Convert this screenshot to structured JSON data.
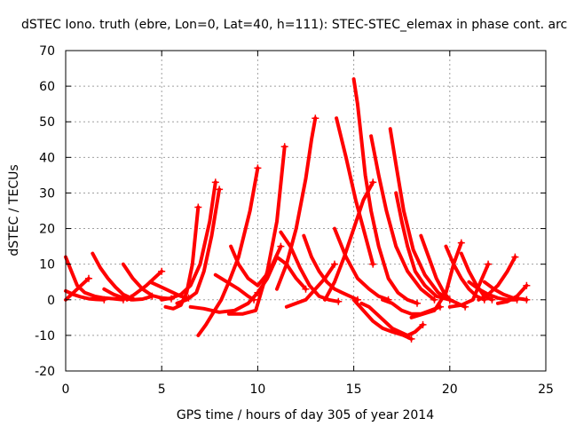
{
  "chart_data": {
    "type": "scatter",
    "title": "dSTEC Iono. truth (ebre, Lon=0, Lat=40, h=111): STEC-STEC_elemax in phase cont. arc",
    "xlabel": "GPS time / hours of day 305 of year 2014",
    "ylabel": "dSTEC  / TECUs",
    "xlim": [
      0,
      25
    ],
    "ylim": [
      -20,
      70
    ],
    "x_ticks": [
      "0",
      "5",
      "10",
      "15",
      "20",
      "25"
    ],
    "y_ticks": [
      "-20",
      "-10",
      "0",
      "10",
      "20",
      "30",
      "40",
      "50",
      "60",
      "70"
    ],
    "grid": true,
    "marker": "+",
    "color": "#ff0000",
    "series": [
      {
        "x": [
          0.0,
          0.3,
          0.6,
          1.0,
          1.5,
          2.0,
          2.5,
          3.0
        ],
        "y": [
          12,
          8,
          4,
          2,
          1,
          0.5,
          0.3,
          0
        ]
      },
      {
        "x": [
          0.0,
          0.3,
          0.6,
          0.9,
          1.2
        ],
        "y": [
          0,
          1.5,
          3,
          4.5,
          6
        ]
      },
      {
        "x": [
          0.0,
          0.4,
          0.8,
          1.2,
          1.6,
          2.0
        ],
        "y": [
          2.5,
          1.5,
          0.8,
          0.3,
          0.1,
          0
        ]
      },
      {
        "x": [
          1.4,
          1.8,
          2.2,
          2.6,
          3.0,
          3.4
        ],
        "y": [
          13,
          9,
          6,
          3.5,
          1.5,
          0.5
        ]
      },
      {
        "x": [
          2.0,
          2.5,
          3.0,
          3.5,
          4.0,
          4.5
        ],
        "y": [
          3,
          1.5,
          0.5,
          0,
          0.2,
          1
        ]
      },
      {
        "x": [
          3.0,
          3.5,
          4.0,
          4.5,
          5.0,
          5.5
        ],
        "y": [
          10,
          6,
          3,
          1.2,
          0.5,
          0.3
        ]
      },
      {
        "x": [
          3.2,
          3.7,
          4.2,
          4.6,
          5.0
        ],
        "y": [
          0,
          2,
          4,
          6,
          8
        ]
      },
      {
        "x": [
          4.4,
          4.8,
          5.2,
          5.6,
          6.0,
          6.4
        ],
        "y": [
          5,
          4,
          3,
          2,
          1,
          0.5
        ]
      },
      {
        "x": [
          5.2,
          5.6,
          6.0,
          6.3,
          6.6,
          6.9
        ],
        "y": [
          -2,
          -2.5,
          -1.5,
          2,
          10,
          26
        ]
      },
      {
        "x": [
          5.0,
          5.5,
          6.0,
          6.5,
          7.0,
          7.5,
          7.8
        ],
        "y": [
          0,
          0.5,
          1.5,
          4,
          10,
          22,
          33
        ]
      },
      {
        "x": [
          5.8,
          6.3,
          6.8,
          7.2,
          7.6,
          8.0
        ],
        "y": [
          -1,
          0,
          2,
          8,
          18,
          31
        ]
      },
      {
        "x": [
          6.9,
          7.3,
          7.7,
          8.1,
          8.5,
          9.0,
          9.6,
          10.0
        ],
        "y": [
          -10,
          -7,
          -3.5,
          0,
          5,
          12,
          25,
          37
        ]
      },
      {
        "x": [
          6.5,
          7.2,
          8.0,
          8.8,
          9.5,
          10.0
        ],
        "y": [
          -2,
          -2.5,
          -3.5,
          -3,
          -1,
          2
        ]
      },
      {
        "x": [
          7.8,
          8.4,
          9.0,
          9.5,
          9.8
        ],
        "y": [
          7,
          5,
          3,
          1,
          0
        ]
      },
      {
        "x": [
          8.6,
          9.0,
          9.5,
          10.0,
          10.6,
          11.2
        ],
        "y": [
          15,
          10,
          6,
          4,
          8,
          15
        ]
      },
      {
        "x": [
          8.5,
          9.2,
          9.9,
          10.5,
          11.0,
          11.4
        ],
        "y": [
          -4,
          -4,
          -3,
          8,
          22,
          43
        ]
      },
      {
        "x": [
          10.0,
          10.5,
          11.0,
          11.5,
          12.0,
          12.5
        ],
        "y": [
          2,
          6,
          12,
          10,
          6,
          3
        ]
      },
      {
        "x": [
          11.2,
          11.7,
          12.2,
          12.7,
          13.2,
          13.7,
          14.2
        ],
        "y": [
          19,
          15,
          9,
          4,
          1,
          0,
          -0.5
        ]
      },
      {
        "x": [
          11.0,
          11.5,
          12.0,
          12.5,
          12.8,
          13.0
        ],
        "y": [
          3,
          10,
          20,
          34,
          45,
          51
        ]
      },
      {
        "x": [
          11.5,
          12.0,
          12.5,
          13.0,
          13.5,
          14.0
        ],
        "y": [
          -2,
          -1,
          0,
          3,
          6,
          10
        ]
      },
      {
        "x": [
          12.4,
          12.8,
          13.2,
          13.6,
          14.0,
          14.4,
          14.8,
          15.2
        ],
        "y": [
          18,
          12,
          8,
          5,
          3,
          2,
          1,
          0
        ]
      },
      {
        "x": [
          13.5,
          14.0,
          14.5,
          15.0,
          15.5,
          16.0
        ],
        "y": [
          0,
          5,
          12,
          20,
          28,
          33
        ]
      },
      {
        "x": [
          14.1,
          14.6,
          15.1,
          15.6,
          16.0
        ],
        "y": [
          51,
          40,
          28,
          18,
          10
        ]
      },
      {
        "x": [
          14.0,
          14.6,
          15.2,
          15.8,
          16.3,
          16.8
        ],
        "y": [
          20,
          12,
          6,
          3,
          1,
          0
        ]
      },
      {
        "x": [
          15.0,
          15.2,
          15.4,
          15.6,
          15.9,
          16.3,
          16.8,
          17.3,
          17.8,
          18.3
        ],
        "y": [
          62,
          55,
          45,
          35,
          25,
          15,
          6,
          2,
          0,
          -1
        ]
      },
      {
        "x": [
          15.4,
          15.8,
          16.2,
          16.6,
          17.0,
          17.4,
          17.8,
          18.2,
          18.6
        ],
        "y": [
          -1,
          -2,
          -4,
          -6,
          -8,
          -9,
          -10,
          -9,
          -7
        ]
      },
      {
        "x": [
          15.0,
          15.5,
          16.0,
          16.5,
          17.0,
          17.6,
          18.0
        ],
        "y": [
          0,
          -3,
          -6,
          -8,
          -9,
          -10,
          -11
        ]
      },
      {
        "x": [
          15.9,
          16.3,
          16.7,
          17.2,
          17.8,
          18.5,
          19.2
        ],
        "y": [
          46,
          35,
          25,
          15,
          8,
          3,
          0
        ]
      },
      {
        "x": [
          16.9,
          17.2,
          17.6,
          18.1,
          18.7,
          19.4,
          20.0
        ],
        "y": [
          48,
          38,
          25,
          14,
          7,
          2,
          0
        ]
      },
      {
        "x": [
          16.5,
          17.0,
          17.5,
          18.0,
          18.5,
          19.0,
          19.5
        ],
        "y": [
          0,
          -1,
          -3,
          -4,
          -4,
          -3,
          -2
        ]
      },
      {
        "x": [
          17.2,
          17.5,
          17.8,
          18.2,
          18.7,
          19.3,
          20.0
        ],
        "y": [
          30,
          22,
          15,
          8,
          4,
          1,
          0
        ]
      },
      {
        "x": [
          18.5,
          18.9,
          19.3,
          19.7,
          20.0,
          20.4,
          20.8
        ],
        "y": [
          18,
          12,
          6,
          2,
          0,
          -1,
          -2
        ]
      },
      {
        "x": [
          18.0,
          18.6,
          19.2,
          19.8,
          20.2,
          20.6
        ],
        "y": [
          -5,
          -4,
          -3,
          2,
          10,
          16
        ]
      },
      {
        "x": [
          19.8,
          20.2,
          20.6,
          21.0,
          21.4,
          21.8
        ],
        "y": [
          15,
          10,
          6,
          3,
          1,
          0
        ]
      },
      {
        "x": [
          20.6,
          21.0,
          21.4,
          21.8,
          22.2
        ],
        "y": [
          13,
          8,
          4,
          1,
          0
        ]
      },
      {
        "x": [
          20.0,
          20.6,
          21.2,
          21.6,
          22.0
        ],
        "y": [
          -2,
          -1.5,
          0,
          5,
          10
        ]
      },
      {
        "x": [
          21.0,
          21.5,
          22.0,
          22.5,
          23.0,
          23.5
        ],
        "y": [
          5,
          3,
          1.5,
          0.5,
          0,
          0
        ]
      },
      {
        "x": [
          21.5,
          22.0,
          22.5,
          23.0,
          23.4
        ],
        "y": [
          0,
          1.5,
          4,
          8,
          12
        ]
      },
      {
        "x": [
          21.8,
          22.3,
          22.8,
          23.3,
          23.8,
          24.0
        ],
        "y": [
          5,
          3,
          1.5,
          0.5,
          0.2,
          0
        ]
      },
      {
        "x": [
          22.5,
          23.0,
          23.5,
          24.0
        ],
        "y": [
          -1,
          -0.5,
          1,
          4
        ]
      }
    ]
  }
}
